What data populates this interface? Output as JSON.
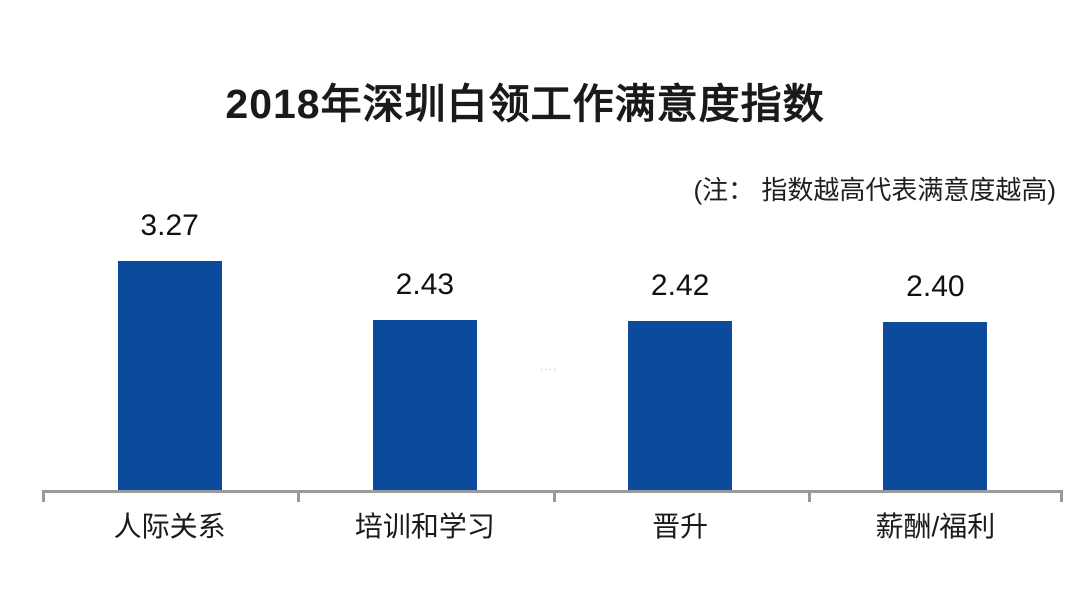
{
  "title": "2018年深圳白领工作满意度指数",
  "note": "(注： 指数越高代表满意度越高)",
  "watermark": "····",
  "colors": {
    "bar": "#0A4B9D",
    "axis": "#9A9A9A",
    "text": "#1A1A1A",
    "watermark": "#B5B5B5"
  },
  "chart_data": {
    "type": "bar",
    "title": "2018年深圳白领工作满意度指数",
    "note": "(注： 指数越高代表满意度越高)",
    "categories": [
      "人际关系",
      "培训和学习",
      "晋升",
      "薪酬/福利"
    ],
    "values": [
      3.27,
      2.43,
      2.42,
      2.4
    ],
    "value_labels": [
      "3.27",
      "2.43",
      "2.42",
      "2.40"
    ],
    "xlabel": "",
    "ylabel": "",
    "ylim": [
      0,
      3.6
    ],
    "grid": false,
    "legend": false,
    "bar_color": "#0A4B9D",
    "axis_color": "#9A9A9A"
  }
}
